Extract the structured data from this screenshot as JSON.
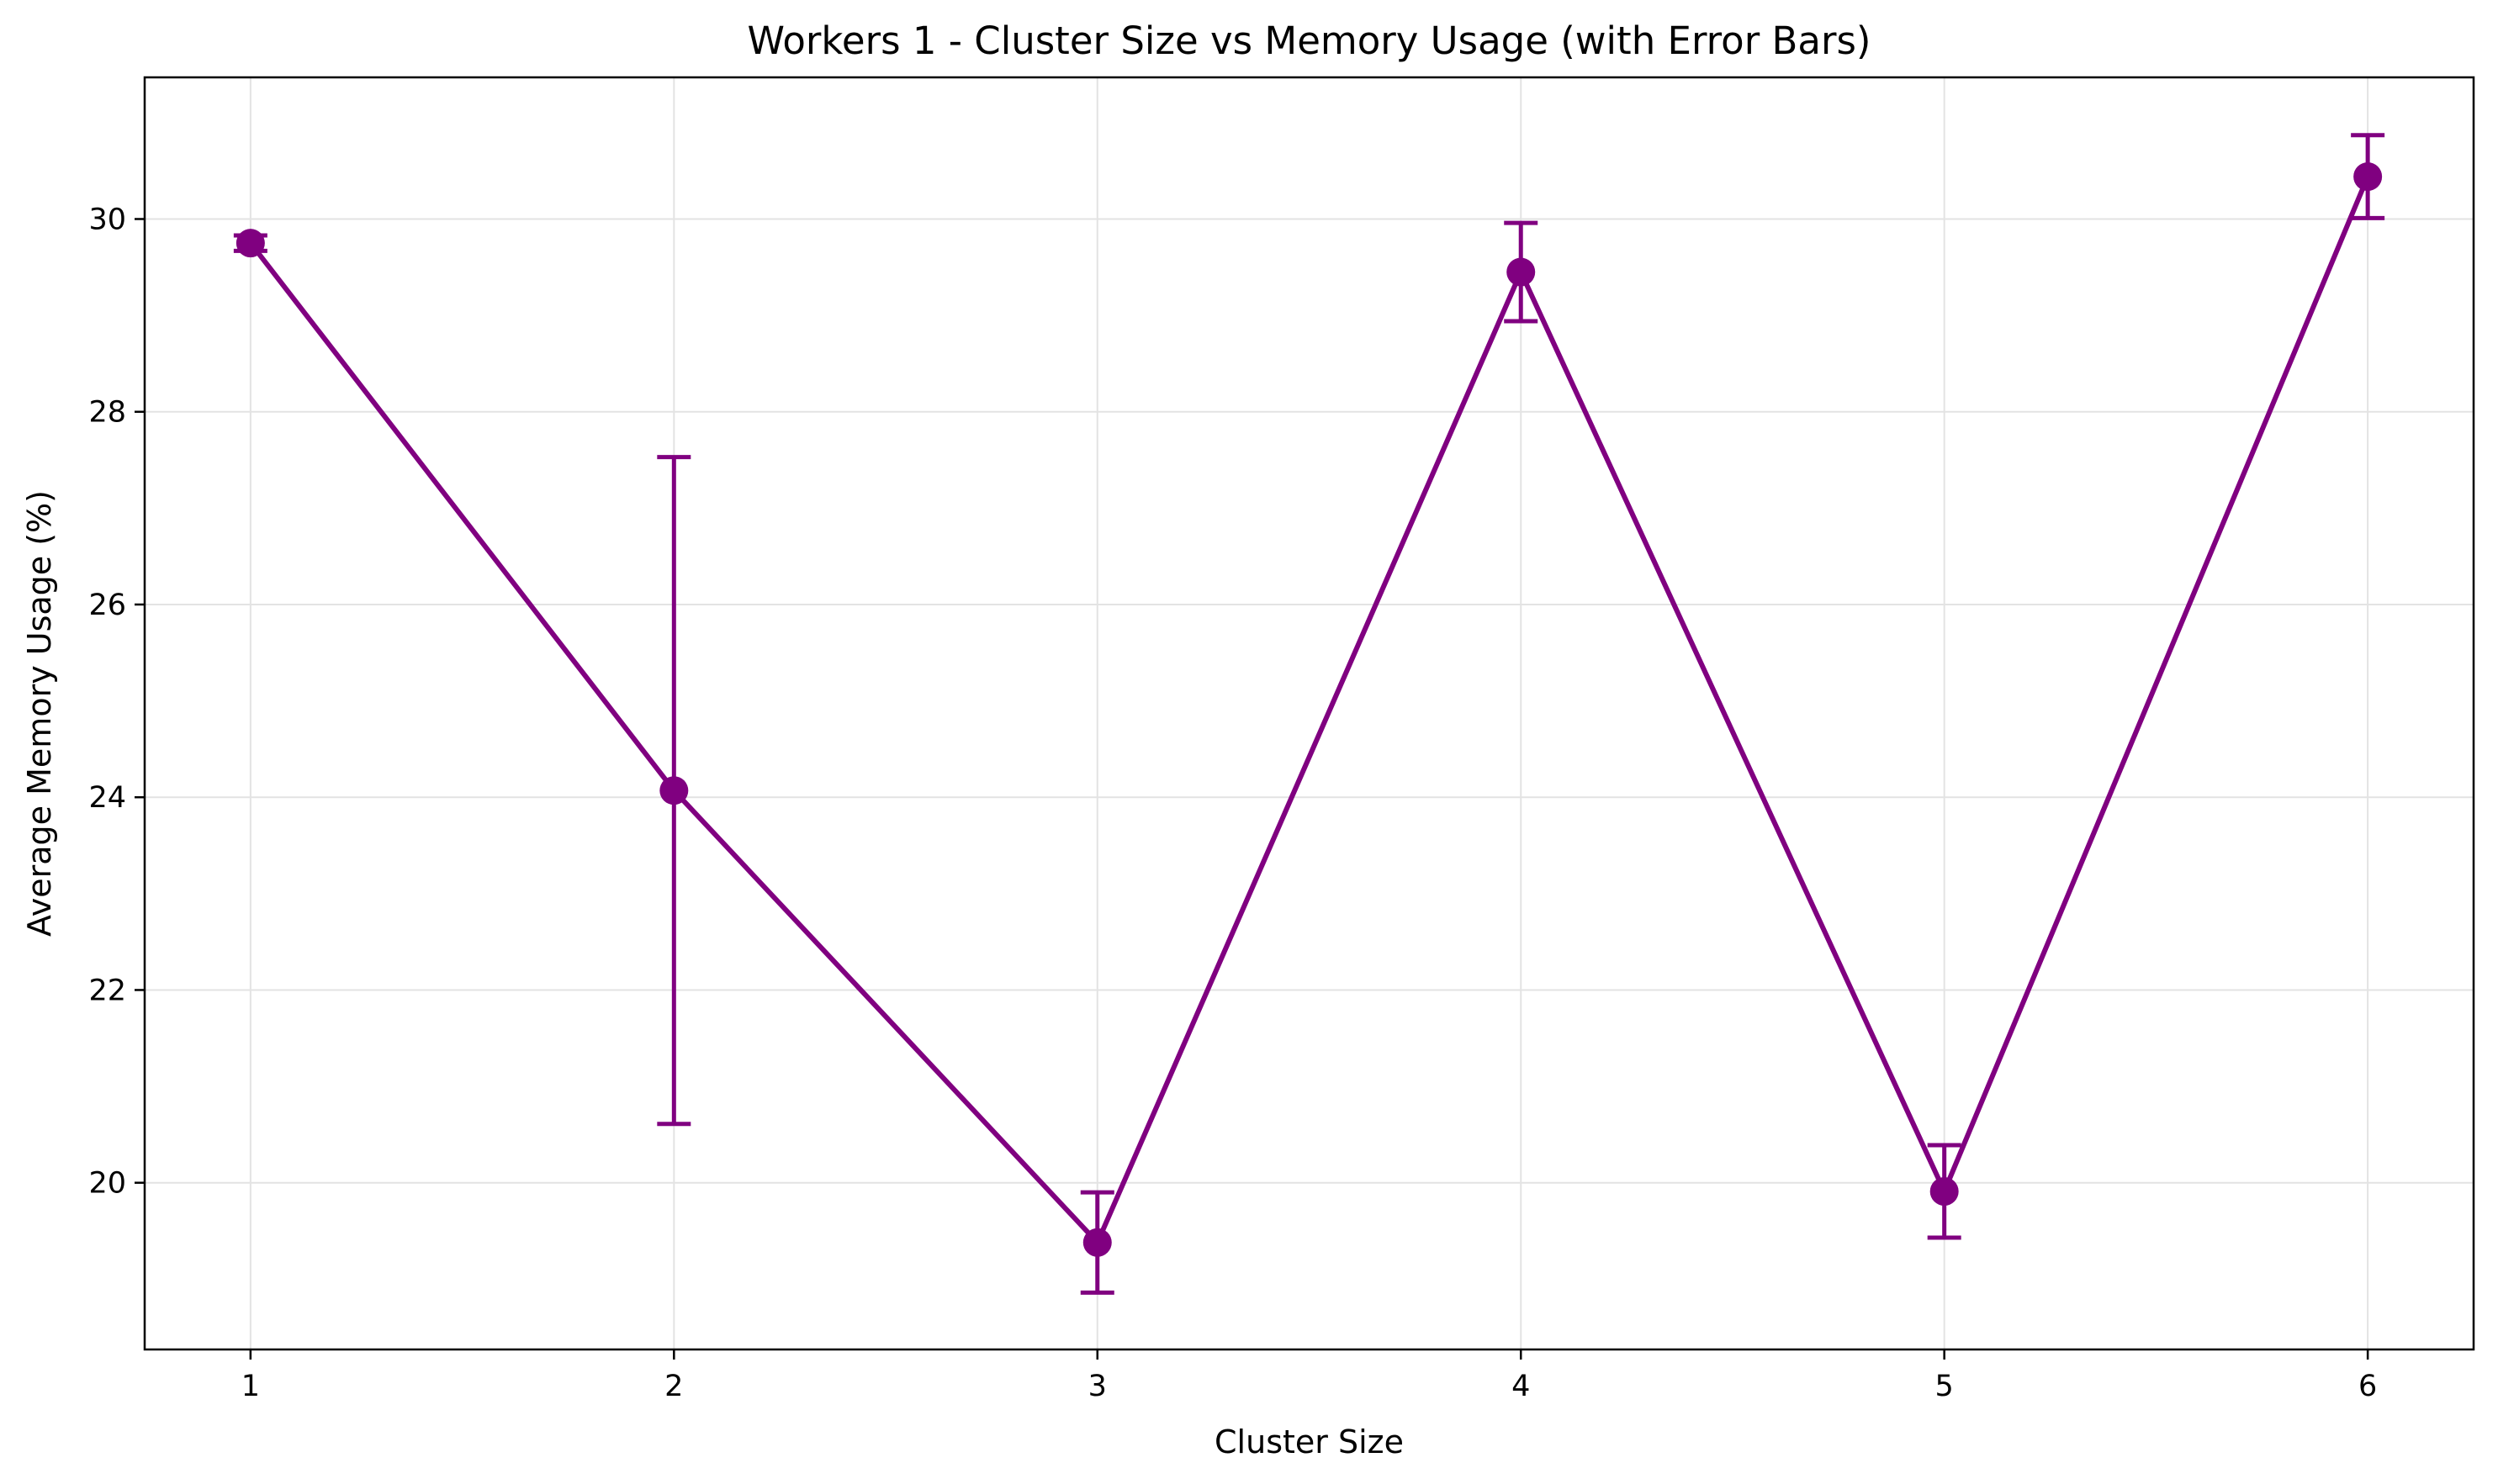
{
  "chart_data": {
    "type": "line",
    "title": "Workers 1 - Cluster Size vs Memory Usage (with Error Bars)",
    "xlabel": "Cluster Size",
    "ylabel": "Average Memory Usage (%)",
    "x": [
      1,
      2,
      3,
      4,
      5,
      6
    ],
    "x_tick_labels": [
      "1",
      "2",
      "3",
      "4",
      "5",
      "6"
    ],
    "y_ticks": [
      20,
      22,
      24,
      26,
      28,
      30
    ],
    "y_tick_labels": [
      "20",
      "22",
      "24",
      "26",
      "28",
      "30"
    ],
    "xlim": [
      0.75,
      6.25
    ],
    "ylim": [
      18.27,
      31.47
    ],
    "grid": true,
    "series": [
      {
        "values": [
          29.75,
          24.07,
          19.38,
          29.45,
          19.91,
          30.44
        ],
        "errors": [
          0.08,
          3.46,
          0.52,
          0.51,
          0.48,
          0.43
        ],
        "color": "#800080"
      }
    ]
  }
}
